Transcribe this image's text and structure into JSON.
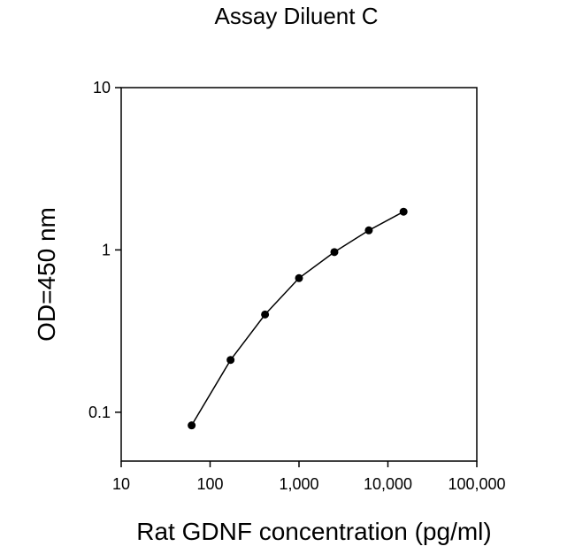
{
  "chart_data": {
    "type": "scatter",
    "title": "Assay Diluent C",
    "xlabel": "Rat GDNF concentration (pg/ml)",
    "ylabel": "OD=450 nm",
    "x_scale": "log",
    "y_scale": "log",
    "xlim": [
      10,
      100000
    ],
    "ylim": [
      0.05,
      10
    ],
    "x_ticks": [
      {
        "value": 10,
        "label": "10"
      },
      {
        "value": 100,
        "label": "100"
      },
      {
        "value": 1000,
        "label": "1,000"
      },
      {
        "value": 10000,
        "label": "10,000"
      },
      {
        "value": 100000,
        "label": "100,000"
      }
    ],
    "y_ticks": [
      {
        "value": 0.1,
        "label": "0.1"
      },
      {
        "value": 1,
        "label": "1"
      },
      {
        "value": 10,
        "label": "10"
      }
    ],
    "grid": false,
    "legend": "none",
    "series": [
      {
        "color": "#000000",
        "line": true,
        "marker": "circle",
        "x": [
          62,
          170,
          415,
          1000,
          2500,
          6100,
          15000
        ],
        "y": [
          0.083,
          0.21,
          0.4,
          0.67,
          0.97,
          1.32,
          1.72
        ]
      }
    ]
  }
}
